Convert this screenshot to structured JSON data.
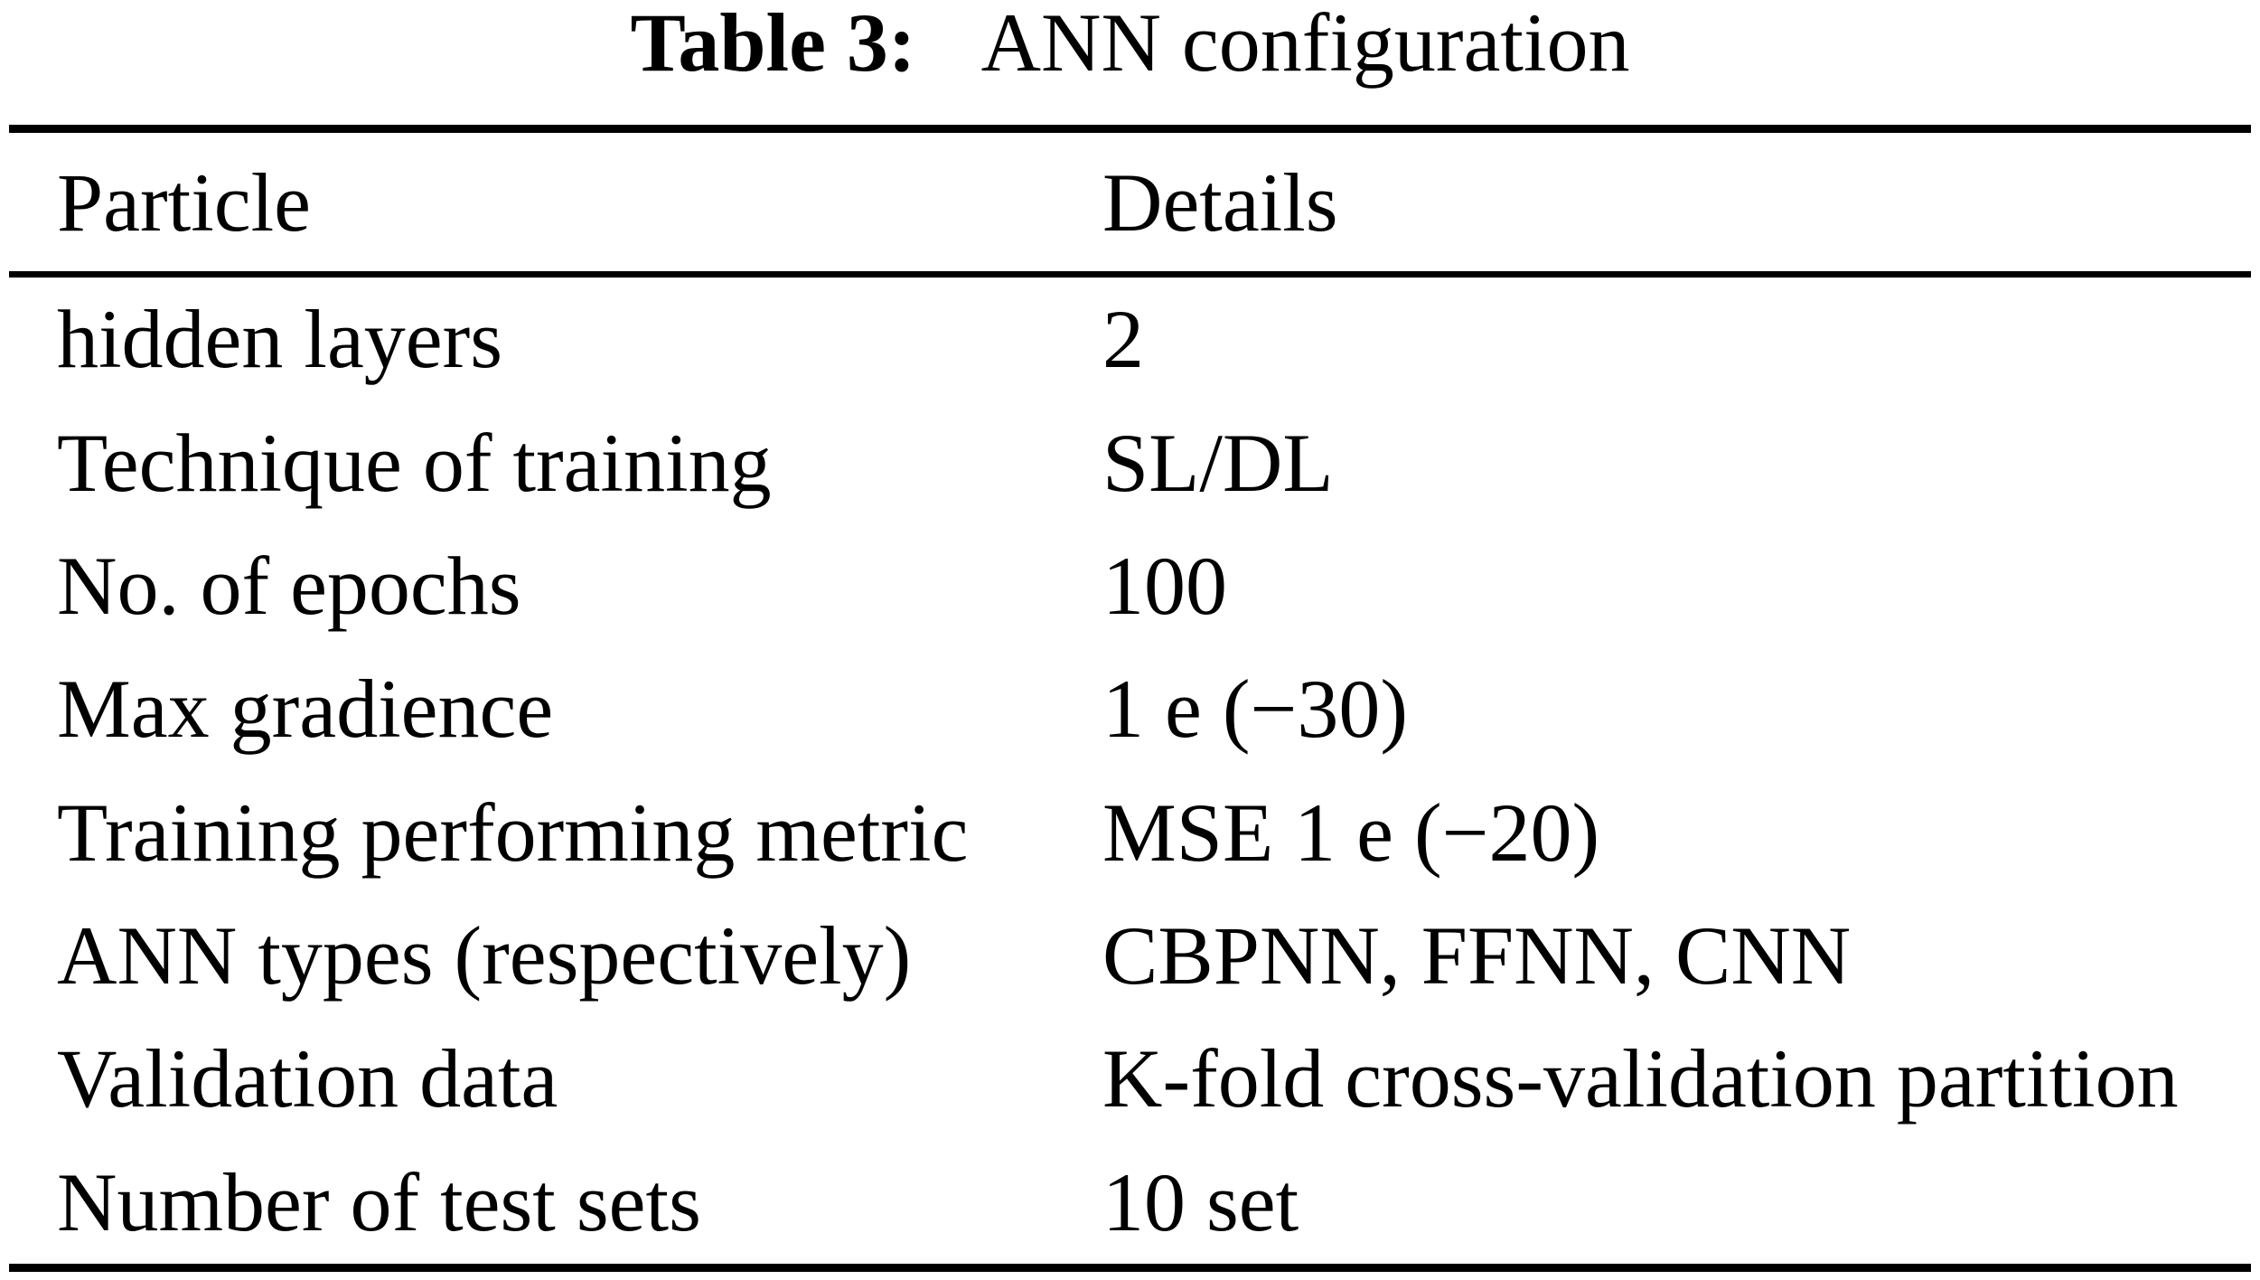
{
  "caption": {
    "label": "Table 3:",
    "title": "ANN configuration"
  },
  "table": {
    "columns": [
      "Particle",
      "Details"
    ],
    "rows": [
      {
        "label": "hidden layers",
        "value": "2"
      },
      {
        "label": "Technique of training",
        "value": "SL/DL"
      },
      {
        "label": "No. of epochs",
        "value": "100"
      },
      {
        "label": "Max gradience",
        "value": "1 e (−30)"
      },
      {
        "label": "Training performing metric",
        "value": "MSE 1 e (−20)"
      },
      {
        "label": "ANN types (respectively)",
        "value": "CBPNN, FFNN, CNN"
      },
      {
        "label": "Validation data",
        "value": "K-fold cross-validation partition"
      },
      {
        "label": "Number of test sets",
        "value": "10 set"
      }
    ]
  },
  "colors": {
    "text": "#000000",
    "background": "#ffffff",
    "rule": "#000000"
  }
}
